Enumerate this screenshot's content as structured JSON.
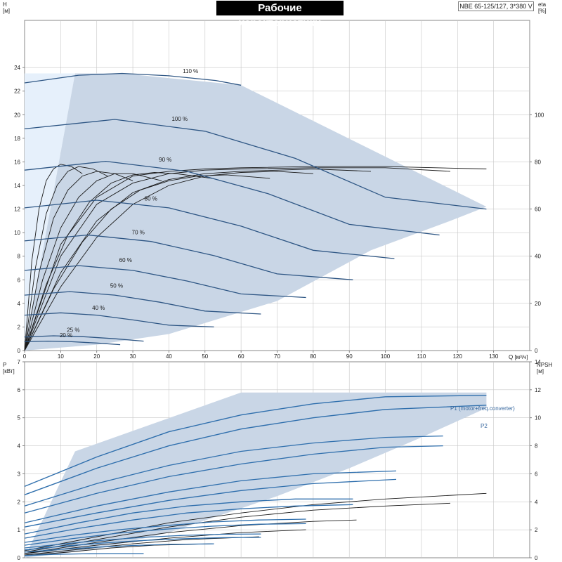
{
  "title": "Рабочие характеристики",
  "model": "NBE 65-125/127, 3*380 V",
  "colors": {
    "area": "#c9d6e6",
    "area_light": "#e6f0fb",
    "curve": "#2e5684",
    "power": "#2f6fad",
    "eff": "#1a1a1a",
    "grid": "#c8c8c8"
  },
  "chart_data": [
    {
      "type": "line",
      "name": "head",
      "xlabel": "Q [м³/ч]",
      "ylabel_name": "H",
      "ylabel_unit": "[м]",
      "y2label_name": "eta",
      "y2label_unit": "[%]",
      "xlim": [
        0,
        140
      ],
      "ylim": [
        0,
        28
      ],
      "y2lim": [
        0,
        140
      ],
      "xticks": [
        0,
        10,
        20,
        30,
        40,
        50,
        60,
        70,
        80,
        90,
        100,
        110,
        120,
        130
      ],
      "yticks": [
        0,
        2,
        4,
        6,
        8,
        10,
        12,
        14,
        16,
        18,
        20,
        22,
        24
      ],
      "y2ticks": [
        0,
        20,
        40,
        60,
        80,
        100
      ],
      "grid": true,
      "operating_area": [
        [
          0,
          0
        ],
        [
          14,
          23.5
        ],
        [
          27,
          23.5
        ],
        [
          60,
          22.5
        ],
        [
          128,
          12.2
        ],
        [
          118,
          11
        ],
        [
          96,
          8.5
        ],
        [
          70,
          4.2
        ],
        [
          40,
          1.4
        ],
        [
          20,
          0.5
        ],
        [
          0,
          0
        ]
      ],
      "series": [
        {
          "name": "110 %",
          "x": [
            0,
            15,
            27,
            40,
            53,
            60
          ],
          "y": [
            22.7,
            23.35,
            23.5,
            23.3,
            22.9,
            22.5
          ]
        },
        {
          "name": "100 %",
          "x": [
            0,
            25,
            50,
            75,
            100,
            128
          ],
          "y": [
            18.8,
            19.6,
            18.6,
            16.3,
            13.0,
            12.0
          ]
        },
        {
          "name": "90 %",
          "x": [
            0,
            22.5,
            45,
            67.5,
            90,
            115
          ],
          "y": [
            15.3,
            16.05,
            15.2,
            13.3,
            10.7,
            9.8
          ]
        },
        {
          "name": "80 %",
          "x": [
            0,
            20,
            40,
            60,
            80,
            102.5
          ],
          "y": [
            12.1,
            12.75,
            12.1,
            10.55,
            8.5,
            7.8
          ]
        },
        {
          "name": "70 %",
          "x": [
            0,
            17.5,
            35,
            52.5,
            70,
            91
          ],
          "y": [
            9.3,
            9.8,
            9.25,
            8.05,
            6.5,
            6.0
          ]
        },
        {
          "name": "60 %",
          "x": [
            0,
            15,
            30,
            45,
            60,
            78
          ],
          "y": [
            6.8,
            7.2,
            6.8,
            5.9,
            4.8,
            4.5
          ]
        },
        {
          "name": "50 %",
          "x": [
            0,
            12.5,
            25,
            37.5,
            50,
            65.5
          ],
          "y": [
            4.7,
            5.0,
            4.7,
            4.1,
            3.35,
            3.1
          ]
        },
        {
          "name": "40 %",
          "x": [
            0,
            10,
            20,
            30,
            40,
            52.5
          ],
          "y": [
            3.0,
            3.2,
            3.0,
            2.6,
            2.15,
            2.0
          ]
        },
        {
          "name": "25 %",
          "x": [
            0,
            8,
            16,
            25,
            33
          ],
          "y": [
            1.15,
            1.25,
            1.18,
            1.0,
            0.8
          ]
        },
        {
          "name": "20 %",
          "x": [
            0,
            6.5,
            13,
            20,
            26.5
          ],
          "y": [
            0.75,
            0.8,
            0.75,
            0.64,
            0.5
          ]
        }
      ],
      "labels": [
        {
          "text": "110 %",
          "x": 46,
          "y": 23.4
        },
        {
          "text": "100 %",
          "x": 43,
          "y": 19.35
        },
        {
          "text": "90 %",
          "x": 39,
          "y": 15.9
        },
        {
          "text": "80 %",
          "x": 35,
          "y": 12.6
        },
        {
          "text": "70 %",
          "x": 31.5,
          "y": 9.75
        },
        {
          "text": "60 %",
          "x": 28,
          "y": 7.4
        },
        {
          "text": "50 %",
          "x": 25.5,
          "y": 5.2
        },
        {
          "text": "40 %",
          "x": 20.5,
          "y": 3.35
        },
        {
          "text": "25 %",
          "x": 13.5,
          "y": 1.45
        },
        {
          "text": "20 %",
          "x": 11.5,
          "y": 1.0
        }
      ],
      "efficiency": [
        {
          "x": [
            0,
            10,
            20,
            30,
            40,
            50,
            60,
            80,
            100,
            128
          ],
          "y": [
            0,
            45,
            65,
            74,
            76,
            77,
            77.5,
            78,
            78,
            77
          ]
        },
        {
          "x": [
            0,
            10,
            20,
            30,
            40,
            50,
            60,
            80,
            100,
            118
          ],
          "y": [
            0,
            40,
            62,
            71,
            75,
            76.5,
            77,
            77.5,
            77.5,
            76
          ]
        },
        {
          "x": [
            0,
            10,
            20,
            30,
            40,
            50,
            60,
            80,
            96
          ],
          "y": [
            0,
            33,
            55,
            67,
            72.5,
            75,
            76,
            77,
            76
          ]
        },
        {
          "x": [
            0,
            10,
            20,
            30,
            40,
            50,
            60,
            70,
            80
          ],
          "y": [
            0,
            27,
            48,
            62,
            70,
            74,
            75.5,
            76,
            75
          ]
        },
        {
          "x": [
            0,
            8,
            16,
            24,
            32,
            40,
            48,
            56,
            68
          ],
          "y": [
            0,
            26,
            46,
            60,
            68,
            72,
            74,
            74.5,
            73
          ]
        },
        {
          "x": [
            0,
            6,
            12,
            18,
            24,
            30,
            36,
            42,
            52
          ],
          "y": [
            0,
            28,
            49,
            63,
            71,
            74.5,
            75.5,
            75,
            73
          ]
        },
        {
          "x": [
            0,
            5,
            10,
            15,
            20,
            25,
            30,
            38
          ],
          "y": [
            0,
            30,
            52,
            65,
            72,
            75,
            75,
            72
          ]
        },
        {
          "x": [
            0,
            4,
            8,
            12,
            16,
            20,
            25,
            30
          ],
          "y": [
            0,
            33,
            56,
            68,
            74,
            76,
            75,
            72
          ]
        },
        {
          "x": [
            0,
            3,
            6,
            9,
            12,
            15,
            19,
            23
          ],
          "y": [
            0,
            35,
            58,
            70,
            76,
            78,
            77,
            74
          ]
        },
        {
          "x": [
            0,
            2,
            4,
            6,
            8,
            10,
            13,
            16
          ],
          "y": [
            0,
            38,
            60,
            72,
            77,
            79,
            78,
            75
          ]
        }
      ]
    },
    {
      "type": "line",
      "name": "power",
      "xlabel": "",
      "ylabel_name": "P",
      "ylabel_unit": "[кВт]",
      "y2label_name": "NPSH",
      "y2label_unit": "[м]",
      "xlim": [
        0,
        140
      ],
      "ylim": [
        0,
        7
      ],
      "y2lim": [
        0,
        14
      ],
      "yticks": [
        0,
        1,
        2,
        3,
        4,
        5,
        6,
        7
      ],
      "y2ticks": [
        0,
        2,
        4,
        6,
        8,
        10,
        12,
        14
      ],
      "grid": true,
      "operating_area": [
        [
          0,
          0
        ],
        [
          14,
          3.8
        ],
        [
          60,
          5.9
        ],
        [
          128,
          5.9
        ],
        [
          128,
          5.35
        ],
        [
          110,
          4.3
        ],
        [
          90,
          3.2
        ],
        [
          70,
          2.2
        ],
        [
          40,
          0.9
        ],
        [
          20,
          0.3
        ],
        [
          0,
          0
        ]
      ],
      "series_labels": [
        {
          "text": "P1 (motor+freq.converter)",
          "x": 118,
          "y": 5.95
        },
        {
          "text": "P2",
          "x": 128,
          "y": 5.35
        }
      ],
      "series": [
        {
          "name": "P1 (motor+freq.converter)",
          "x": [
            0,
            20,
            40,
            60,
            80,
            100,
            128
          ],
          "y": [
            2.55,
            3.6,
            4.5,
            5.1,
            5.5,
            5.75,
            5.8
          ]
        },
        {
          "name": "P2",
          "x": [
            0,
            20,
            40,
            60,
            80,
            100,
            128
          ],
          "y": [
            2.25,
            3.2,
            4.0,
            4.6,
            5.0,
            5.3,
            5.45
          ]
        },
        {
          "x": [
            0,
            20,
            40,
            60,
            80,
            100,
            116
          ],
          "y": [
            1.85,
            2.65,
            3.3,
            3.8,
            4.1,
            4.3,
            4.35
          ]
        },
        {
          "x": [
            0,
            20,
            40,
            60,
            80,
            100,
            116
          ],
          "y": [
            1.6,
            2.3,
            2.9,
            3.35,
            3.7,
            3.95,
            4.0
          ]
        },
        {
          "x": [
            0,
            20,
            40,
            60,
            80,
            103
          ],
          "y": [
            1.25,
            1.85,
            2.35,
            2.75,
            3.0,
            3.1
          ]
        },
        {
          "x": [
            0,
            20,
            40,
            60,
            80,
            103
          ],
          "y": [
            1.1,
            1.6,
            2.05,
            2.4,
            2.65,
            2.8
          ]
        },
        {
          "x": [
            0,
            15,
            30,
            45,
            60,
            75,
            91
          ],
          "y": [
            0.85,
            1.25,
            1.6,
            1.85,
            2.0,
            2.1,
            2.1
          ]
        },
        {
          "x": [
            0,
            15,
            30,
            45,
            60,
            75,
            91
          ],
          "y": [
            0.7,
            1.05,
            1.35,
            1.6,
            1.75,
            1.85,
            1.9
          ]
        },
        {
          "x": [
            0,
            13,
            26,
            39,
            52,
            65,
            78
          ],
          "y": [
            0.55,
            0.8,
            1.0,
            1.15,
            1.28,
            1.35,
            1.38
          ]
        },
        {
          "x": [
            0,
            13,
            26,
            39,
            52,
            65,
            78
          ],
          "y": [
            0.45,
            0.68,
            0.88,
            1.02,
            1.13,
            1.2,
            1.22
          ]
        },
        {
          "x": [
            0,
            11,
            22,
            33,
            44,
            55,
            65.5
          ],
          "y": [
            0.35,
            0.5,
            0.63,
            0.73,
            0.8,
            0.84,
            0.85
          ]
        },
        {
          "x": [
            0,
            11,
            22,
            33,
            44,
            55,
            65.5
          ],
          "y": [
            0.28,
            0.42,
            0.53,
            0.62,
            0.68,
            0.72,
            0.73
          ]
        },
        {
          "x": [
            0,
            10,
            20,
            30,
            40,
            52.5
          ],
          "y": [
            0.2,
            0.3,
            0.38,
            0.44,
            0.48,
            0.5
          ]
        },
        {
          "x": [
            0,
            8,
            16,
            24,
            33
          ],
          "y": [
            0.08,
            0.12,
            0.14,
            0.15,
            0.15
          ]
        }
      ],
      "npsh": [
        {
          "x": [
            0,
            20,
            40,
            60,
            80,
            100,
            128
          ],
          "y": [
            0.5,
            1.5,
            2.5,
            3.2,
            3.8,
            4.2,
            4.6
          ]
        },
        {
          "x": [
            0,
            20,
            40,
            60,
            80,
            100,
            118
          ],
          "y": [
            0.4,
            1.3,
            2.2,
            2.9,
            3.4,
            3.7,
            3.9
          ]
        },
        {
          "x": [
            0,
            20,
            40,
            60,
            80,
            92
          ],
          "y": [
            0.3,
            1.1,
            1.8,
            2.3,
            2.6,
            2.7
          ]
        },
        {
          "x": [
            0,
            20,
            40,
            60,
            78
          ],
          "y": [
            0.3,
            0.9,
            1.4,
            1.8,
            2.0
          ]
        },
        {
          "x": [
            0,
            15,
            30,
            45,
            65
          ],
          "y": [
            0.2,
            0.6,
            1.0,
            1.3,
            1.5
          ]
        },
        {
          "x": [
            0,
            12,
            24,
            36,
            52
          ],
          "y": [
            0.15,
            0.4,
            0.7,
            0.9,
            1.0
          ]
        }
      ]
    }
  ]
}
